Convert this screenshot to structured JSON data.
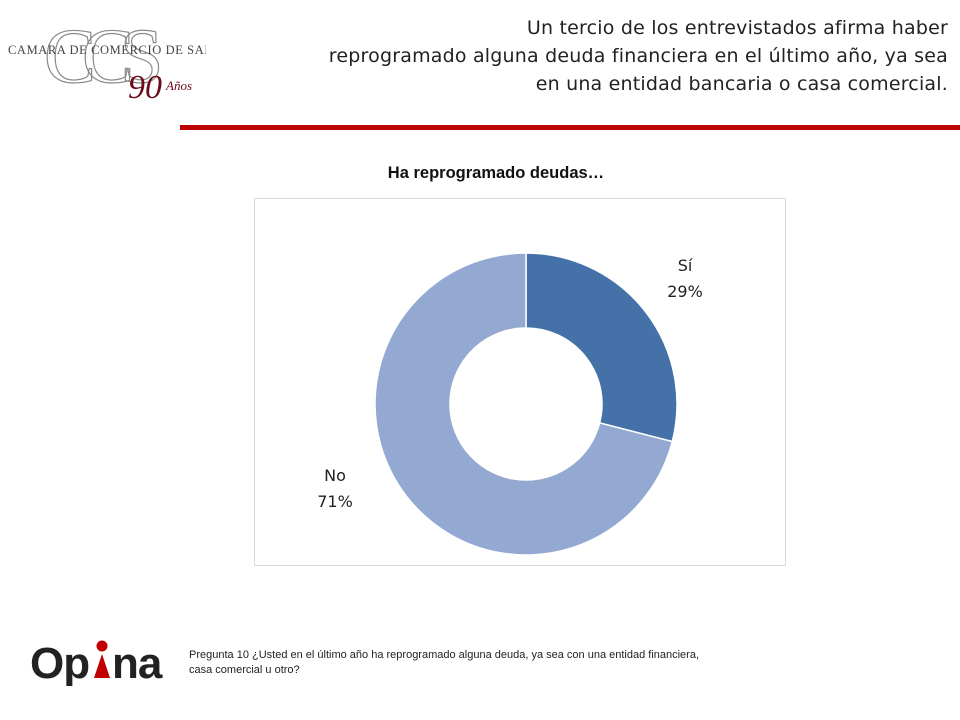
{
  "logo_ccs": {
    "initials": "CCS",
    "name": "Camara de Comercio de Santiago",
    "anniversary_number": "90",
    "anniversary_word": "Años"
  },
  "headline": {
    "line1": "Un tercio de los entrevistados afirma haber",
    "line2": "reprogramado alguna deuda financiera en el último año, ya sea",
    "line3": "en una entidad bancaria o casa comercial."
  },
  "colors": {
    "accent_rule": "#c00000",
    "series_si": "#4472a8",
    "series_no": "#94a9d2",
    "opina_red": "#c00000"
  },
  "chart_data": {
    "type": "pie",
    "variant": "donut",
    "title": "Ha reprogramado deudas…",
    "categories": [
      "Sí",
      "No"
    ],
    "values": [
      29,
      71
    ],
    "unit": "%",
    "labels": [
      {
        "category": "Sí",
        "value": "29%"
      },
      {
        "category": "No",
        "value": "71%"
      }
    ],
    "legend": "none"
  },
  "footer": {
    "logo_text_left": "Op",
    "logo_text_right": "na",
    "footnote_line1": "Pregunta 10  ¿Usted en el último año ha reprogramado alguna deuda, ya sea con una entidad financiera,",
    "footnote_line2": "casa comercial u otro?"
  }
}
